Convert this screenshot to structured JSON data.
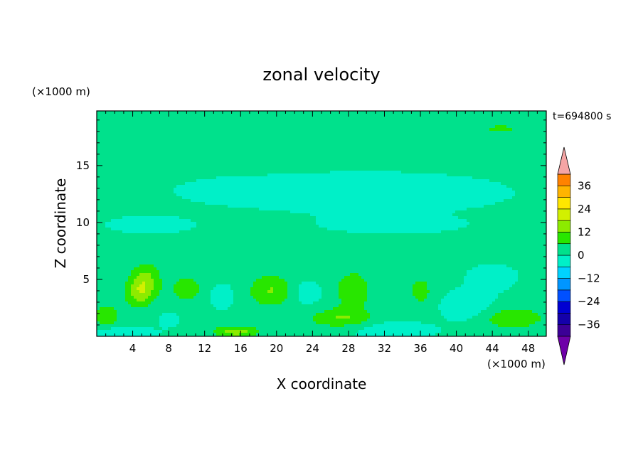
{
  "chart_data": {
    "type": "heatmap",
    "title": "zonal velocity",
    "xlabel": "X coordinate",
    "ylabel": "Z coordinate",
    "x_unit": "(×1000 m)",
    "y_unit": "(×1000 m)",
    "time_label": "t=694800 s",
    "xlim": [
      0,
      50
    ],
    "ylim": [
      0,
      19.8
    ],
    "x_ticks": [
      4,
      8,
      12,
      16,
      20,
      24,
      28,
      32,
      36,
      40,
      44,
      48
    ],
    "y_ticks": [
      5,
      10,
      15
    ],
    "colorbar": {
      "ticks": [
        36,
        24,
        12,
        0,
        -12,
        -24,
        -36
      ],
      "levels": [
        -42,
        -36,
        -30,
        -24,
        -18,
        -12,
        -6,
        0,
        6,
        12,
        18,
        24,
        30,
        36,
        42
      ],
      "extend": "both",
      "colors": [
        "#6e00a8",
        "#3c0096",
        "#1400aa",
        "#0000d2",
        "#0050ff",
        "#0096ff",
        "#00d2ff",
        "#00f0c8",
        "#00e18c",
        "#28e600",
        "#8ceb00",
        "#d2f000",
        "#ffe600",
        "#ffb400",
        "#ff8200",
        "#ff4600",
        "#ff1e00",
        "#f5a5a5"
      ]
    },
    "background_level": 1.5,
    "features": [
      {
        "x": 25,
        "z": 18.2,
        "sx": 14,
        "sz": 1.2,
        "v": 3
      },
      {
        "x": 30,
        "z": 12.6,
        "sx": 14,
        "sz": 1.6,
        "v": -6
      },
      {
        "x": 15,
        "z": 12.8,
        "sx": 6,
        "sz": 1.0,
        "v": -3
      },
      {
        "x": 6,
        "z": 9.8,
        "sx": 5,
        "sz": 0.8,
        "v": -4
      },
      {
        "x": 33,
        "z": 9.8,
        "sx": 8,
        "sz": 0.8,
        "v": -4
      },
      {
        "x": 5.5,
        "z": 4.8,
        "sx": 1.6,
        "sz": 1.6,
        "v": 12
      },
      {
        "x": 4.5,
        "z": 3.8,
        "sx": 1.5,
        "sz": 1.3,
        "v": 10
      },
      {
        "x": 10,
        "z": 4.2,
        "sx": 1.6,
        "sz": 1.0,
        "v": 10
      },
      {
        "x": 19.5,
        "z": 4.0,
        "sx": 2.5,
        "sz": 1.4,
        "v": 11
      },
      {
        "x": 28.5,
        "z": 4.0,
        "sx": 2.0,
        "sz": 1.8,
        "v": 9
      },
      {
        "x": 27,
        "z": 1.6,
        "sx": 3.5,
        "sz": 0.8,
        "v": 10
      },
      {
        "x": 15.5,
        "z": 0.4,
        "sx": 2.5,
        "sz": 0.5,
        "v": 13
      },
      {
        "x": 46,
        "z": 1.6,
        "sx": 4,
        "sz": 1.0,
        "v": 9
      },
      {
        "x": 1,
        "z": 1.8,
        "sx": 1.5,
        "sz": 1.0,
        "v": 9
      },
      {
        "x": 36,
        "z": 4.0,
        "sx": 1.2,
        "sz": 1.2,
        "v": 8
      },
      {
        "x": 2,
        "z": 0.3,
        "sx": 4,
        "sz": 0.5,
        "v": -7
      },
      {
        "x": 33,
        "z": 0.5,
        "sx": 4,
        "sz": 0.7,
        "v": -7
      },
      {
        "x": 41.5,
        "z": 2.5,
        "sx": 3.0,
        "sz": 1.5,
        "v": -6
      },
      {
        "x": 23,
        "z": 3.8,
        "sx": 2.0,
        "sz": 1.2,
        "v": -5
      },
      {
        "x": 14,
        "z": 3.5,
        "sx": 1.6,
        "sz": 1.2,
        "v": -4
      },
      {
        "x": 44,
        "z": 5.2,
        "sx": 2.5,
        "sz": 1.0,
        "v": -6
      },
      {
        "x": 8,
        "z": 1.5,
        "sx": 1.5,
        "sz": 0.8,
        "v": -3
      },
      {
        "x": 45,
        "z": 18.2,
        "sx": 2.5,
        "sz": 0.6,
        "v": 5
      }
    ]
  }
}
